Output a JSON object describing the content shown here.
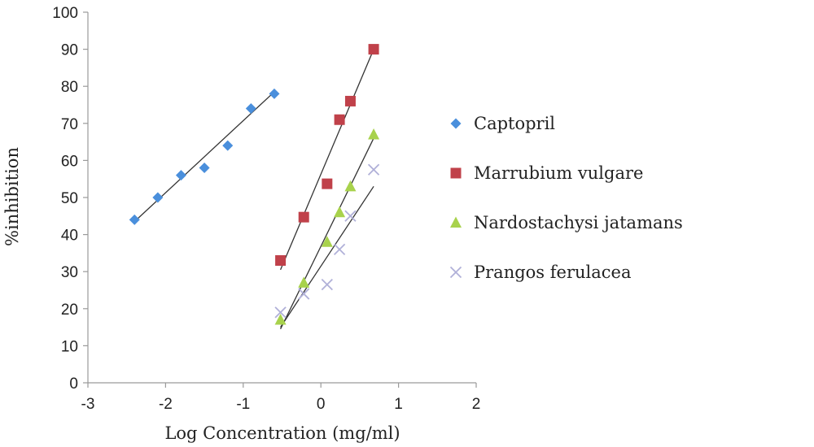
{
  "chart_data": {
    "type": "scatter",
    "title": "",
    "xlabel": "Log Concentration (mg/ml)",
    "ylabel": "%inhibition",
    "xlim": [
      -3,
      2
    ],
    "ylim": [
      0,
      100
    ],
    "x_ticks": [
      -3,
      -2,
      -1,
      0,
      1,
      2
    ],
    "y_ticks": [
      0,
      10,
      20,
      30,
      40,
      50,
      60,
      70,
      80,
      90,
      100
    ],
    "grid": false,
    "legend_position": "right",
    "series": [
      {
        "name": "Captopril",
        "marker": "diamond",
        "color": "#4a8fdc",
        "points": [
          {
            "x": -2.4,
            "y": 44
          },
          {
            "x": -2.1,
            "y": 50
          },
          {
            "x": -1.8,
            "y": 56
          },
          {
            "x": -1.5,
            "y": 58
          },
          {
            "x": -1.2,
            "y": 64
          },
          {
            "x": -0.9,
            "y": 74
          },
          {
            "x": -0.6,
            "y": 78
          }
        ],
        "trendline": [
          {
            "x": -2.4,
            "y": 43.5
          },
          {
            "x": -0.6,
            "y": 78.5
          }
        ]
      },
      {
        "name": "Marrubium vulgare",
        "marker": "square",
        "color": "#c0414a",
        "points": [
          {
            "x": -0.52,
            "y": 33
          },
          {
            "x": -0.22,
            "y": 44.7
          },
          {
            "x": 0.08,
            "y": 53.7
          },
          {
            "x": 0.24,
            "y": 71
          },
          {
            "x": 0.38,
            "y": 76
          },
          {
            "x": 0.68,
            "y": 90
          }
        ],
        "trendline": [
          {
            "x": -0.52,
            "y": 30.5
          },
          {
            "x": 0.68,
            "y": 90
          }
        ]
      },
      {
        "name": "Nardostachysi jatamans",
        "marker": "triangle",
        "color": "#a8d24c",
        "points": [
          {
            "x": -0.52,
            "y": 17
          },
          {
            "x": -0.22,
            "y": 27
          },
          {
            "x": 0.08,
            "y": 38
          },
          {
            "x": 0.24,
            "y": 46
          },
          {
            "x": 0.38,
            "y": 53
          },
          {
            "x": 0.68,
            "y": 67
          }
        ],
        "trendline": [
          {
            "x": -0.52,
            "y": 14.5
          },
          {
            "x": 0.68,
            "y": 66
          }
        ]
      },
      {
        "name": "Prangos ferulacea",
        "marker": "x",
        "color": "#b0b0d8",
        "points": [
          {
            "x": -0.52,
            "y": 19
          },
          {
            "x": -0.22,
            "y": 24
          },
          {
            "x": 0.08,
            "y": 26.5
          },
          {
            "x": 0.24,
            "y": 36
          },
          {
            "x": 0.38,
            "y": 45
          },
          {
            "x": 0.68,
            "y": 57.5
          }
        ],
        "trendline": [
          {
            "x": -0.52,
            "y": 15
          },
          {
            "x": 0.68,
            "y": 53
          }
        ]
      }
    ]
  }
}
